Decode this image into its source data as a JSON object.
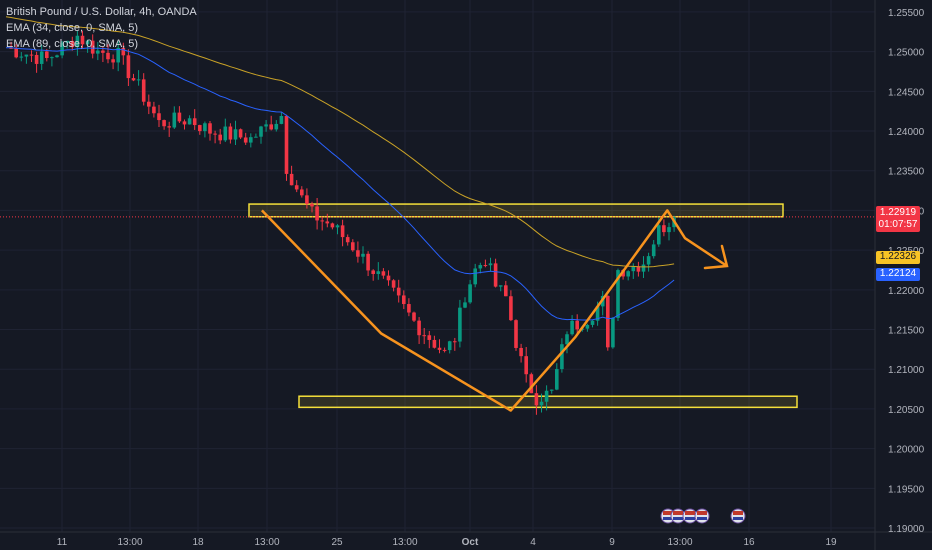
{
  "legend": {
    "symbol": "British Pound / U.S. Dollar, 4h, OANDA",
    "ema1": "EMA (34, close, 0, SMA, 5)",
    "ema2": "EMA (89, close, 0, SMA, 5)"
  },
  "colors": {
    "background": "#151924",
    "grid": "#1f2333",
    "up": "#089981",
    "down": "#f23645",
    "ema34": "#c9a227",
    "ema89": "#2962ff",
    "zone": "#f5e03a",
    "pattern": "#f7931e",
    "axis_text": "#b2b5be"
  },
  "price_tags": {
    "last_price": "1.22919",
    "countdown": "01:07:57",
    "ema34": "1.22326",
    "ema89": "1.22124"
  },
  "chart_data": {
    "type": "candlestick",
    "symbol": "GBPUSD",
    "timeframe": "4h",
    "x_ticks": [
      "11",
      "13:00",
      "18",
      "13:00",
      "25",
      "13:00",
      "Oct",
      "4",
      "9",
      "13:00",
      "16",
      "19"
    ],
    "y_ticks": [
      "1.25500",
      "1.25000",
      "1.24500",
      "1.24000",
      "1.23500",
      "1.23000",
      "1.22500",
      "1.22000",
      "1.21500",
      "1.21000",
      "1.20500",
      "1.20000",
      "1.19500",
      "1.19000"
    ],
    "ylim": [
      1.1895,
      1.2565
    ],
    "n_bars": 131,
    "anchors": [
      [
        0,
        1.2505
      ],
      [
        8,
        1.249
      ],
      [
        14,
        1.252
      ],
      [
        18,
        1.25
      ],
      [
        22,
        1.2495
      ],
      [
        26,
        1.2455
      ],
      [
        30,
        1.241
      ],
      [
        36,
        1.2415
      ],
      [
        40,
        1.24
      ],
      [
        44,
        1.2395
      ],
      [
        48,
        1.239
      ],
      [
        52,
        1.241
      ],
      [
        54,
        1.242
      ],
      [
        55,
        1.2355
      ],
      [
        58,
        1.2315
      ],
      [
        60,
        1.2295
      ],
      [
        64,
        1.228
      ],
      [
        68,
        1.2255
      ],
      [
        74,
        1.221
      ],
      [
        80,
        1.216
      ],
      [
        86,
        1.212
      ],
      [
        88,
        1.214
      ],
      [
        90,
        1.2195
      ],
      [
        92,
        1.2225
      ],
      [
        94,
        1.224
      ],
      [
        96,
        1.2205
      ],
      [
        98,
        1.219
      ],
      [
        100,
        1.2135
      ],
      [
        102,
        1.2085
      ],
      [
        104,
        1.2065
      ],
      [
        107,
        1.207
      ],
      [
        110,
        1.215
      ],
      [
        114,
        1.2165
      ],
      [
        117,
        1.2185
      ],
      [
        118,
        1.212
      ],
      [
        120,
        1.2225
      ],
      [
        123,
        1.223
      ],
      [
        125,
        1.2235
      ],
      [
        128,
        1.2275
      ],
      [
        131,
        1.2292
      ]
    ],
    "ema34_last": 1.22326,
    "ema89_last": 1.22124,
    "last_price": 1.22919,
    "zones": [
      {
        "name": "resistance",
        "low": 1.2292,
        "high": 1.2308
      },
      {
        "name": "support",
        "low": 1.2052,
        "high": 1.2066
      }
    ],
    "pattern_path": [
      [
        0.281,
        1.23
      ],
      [
        0.409,
        1.2145
      ],
      [
        0.548,
        1.2048
      ],
      [
        0.617,
        1.214
      ],
      [
        0.716,
        1.23
      ],
      [
        0.735,
        1.2265
      ],
      [
        0.78,
        1.223
      ]
    ],
    "grid": true
  }
}
